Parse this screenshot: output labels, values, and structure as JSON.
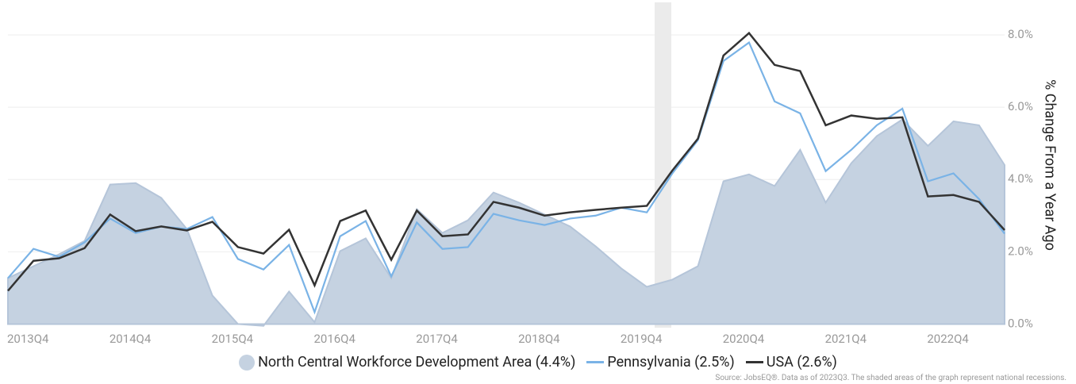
{
  "chart_data": {
    "type": "line",
    "y_label": "% Change From a Year Ago",
    "source": "Source: JobsEQ®. Data as of 2023Q3. The shaded areas of the graph represent national recessions.",
    "categories": [
      "2013Q4",
      null,
      null,
      null,
      "2014Q4",
      null,
      null,
      null,
      "2015Q4",
      null,
      null,
      null,
      "2016Q4",
      null,
      null,
      null,
      "2017Q4",
      null,
      null,
      null,
      "2018Q4",
      null,
      null,
      null,
      "2019Q4",
      null,
      null,
      null,
      "2020Q4",
      null,
      null,
      null,
      "2021Q4",
      null,
      null,
      null,
      "2022Q4",
      null,
      null,
      null
    ],
    "series": [
      {
        "name": "North Central Workforce Development Area (4.4%)",
        "style": "area",
        "color": "#c5d2e1",
        "stroke": "#b5c5d9",
        "values": [
          1.27,
          1.6,
          1.93,
          2.3,
          3.86,
          3.9,
          3.49,
          2.63,
          0.79,
          0.0,
          -0.05,
          0.9,
          0.05,
          2.02,
          2.37,
          1.27,
          3.18,
          2.52,
          2.87,
          3.64,
          3.36,
          3.03,
          2.7,
          2.15,
          1.54,
          1.03,
          1.23,
          1.6,
          3.95,
          4.14,
          3.82,
          4.82,
          3.36,
          4.45,
          5.2,
          5.66,
          4.93,
          5.61,
          5.5,
          4.4
        ]
      },
      {
        "name": "Pennsylvania (2.5%)",
        "style": "line",
        "color": "#7ab3e6",
        "values": [
          1.27,
          2.08,
          1.86,
          2.26,
          2.92,
          2.52,
          2.7,
          2.63,
          2.96,
          1.8,
          1.51,
          2.19,
          0.33,
          2.43,
          2.85,
          1.32,
          2.81,
          2.08,
          2.13,
          3.05,
          2.87,
          2.74,
          2.92,
          3.0,
          3.22,
          3.09,
          4.17,
          5.09,
          7.28,
          7.79,
          6.16,
          5.83,
          4.23,
          4.82,
          5.5,
          5.96,
          3.95,
          4.17,
          3.46,
          2.5
        ]
      },
      {
        "name": "USA (2.6%)",
        "style": "line",
        "color": "#333333",
        "values": [
          0.92,
          1.75,
          1.82,
          2.1,
          3.03,
          2.57,
          2.7,
          2.59,
          2.83,
          2.13,
          1.95,
          2.61,
          1.07,
          2.85,
          3.14,
          1.78,
          3.14,
          2.43,
          2.48,
          3.38,
          3.22,
          3.0,
          3.09,
          3.16,
          3.22,
          3.27,
          4.25,
          5.13,
          7.43,
          8.05,
          7.17,
          7.0,
          5.5,
          5.77,
          5.68,
          5.72,
          3.53,
          3.57,
          3.38,
          2.6
        ]
      }
    ],
    "ylim": [
      -0.1,
      8.9
    ],
    "yticks": [
      {
        "value": 0,
        "label": "0.0%"
      },
      {
        "value": 2,
        "label": "2.0%"
      },
      {
        "value": 4,
        "label": "4.0%"
      },
      {
        "value": 6,
        "label": "6.0%"
      },
      {
        "value": 8,
        "label": "8.0%"
      }
    ],
    "grid": true
  }
}
